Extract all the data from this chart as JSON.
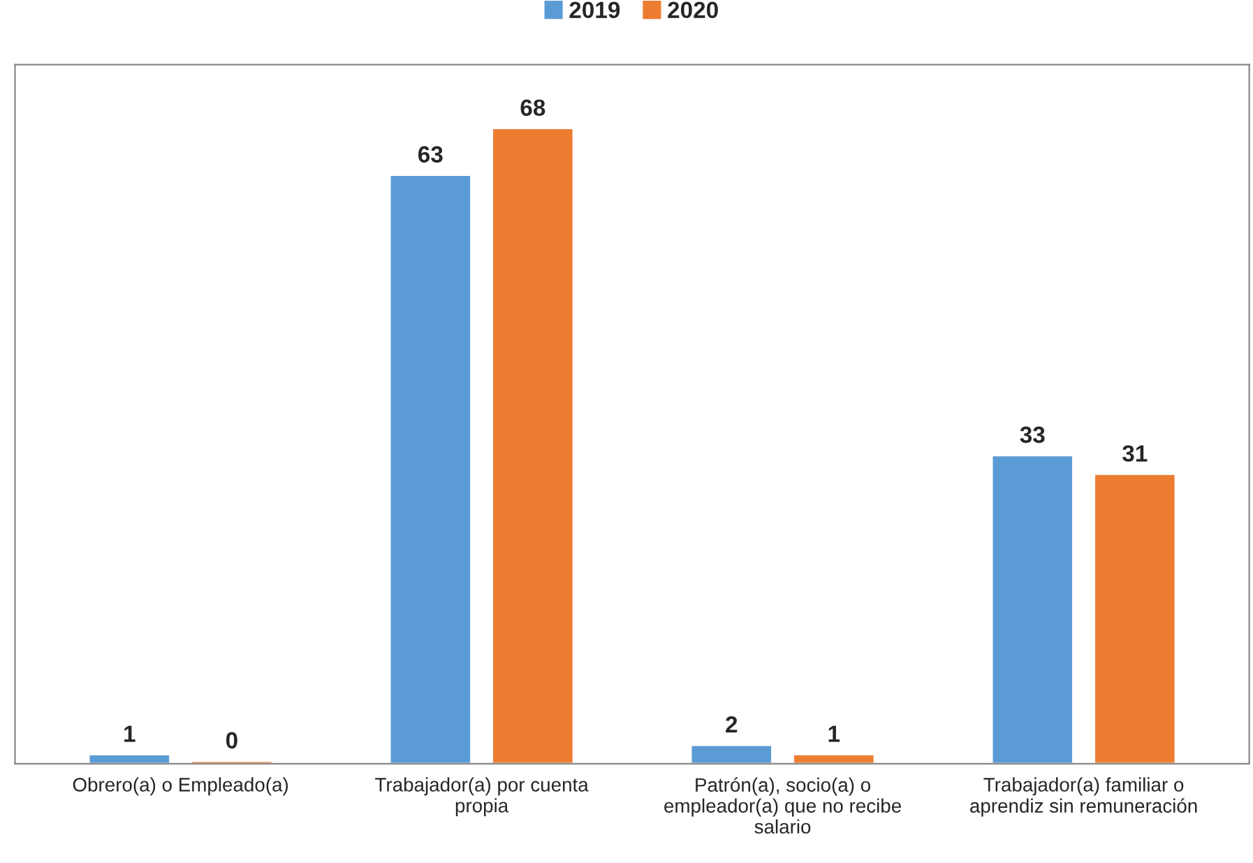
{
  "chart_data": {
    "type": "bar",
    "categories": [
      "Obrero(a) o Empleado(a)",
      "Trabajador(a) por cuenta propia",
      "Patrón(a), socio(a) o empleador(a) que no recibe salario",
      "Trabajador(a) familiar o aprendiz sin remuneración"
    ],
    "series": [
      {
        "name": "2019",
        "color": "#5b9bd5",
        "values": [
          1,
          63,
          2,
          33
        ],
        "value_labels": [
          "1",
          "63",
          "2",
          "33"
        ]
      },
      {
        "name": "2020",
        "color": "#ed7d31",
        "values": [
          0.3,
          68,
          1,
          31
        ],
        "value_labels": [
          "0",
          "68",
          "1",
          "31"
        ]
      }
    ],
    "legend": "top",
    "grid": false
  }
}
